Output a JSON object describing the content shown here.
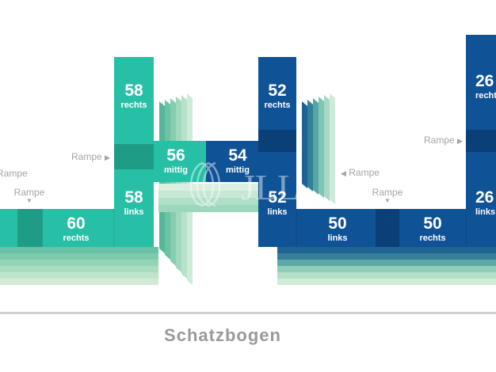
{
  "colors": {
    "green_top": "#27c0a6",
    "green_dark": "#1f9c86",
    "blue_top": "#0f5296",
    "blue_dark": "#0a3f78",
    "ramp_text": "#a4a4a4",
    "street": "#cfcfcf",
    "street_text": "#9a9a9a"
  },
  "sections": [
    {
      "id": "left-rechts",
      "number": "60",
      "label": "rechts"
    },
    {
      "id": "green-tower-rechts",
      "number": "58",
      "label": "rechts"
    },
    {
      "id": "green-tower-links",
      "number": "58",
      "label": "links"
    },
    {
      "id": "bridge-green-mittig",
      "number": "56",
      "label": "mittig"
    },
    {
      "id": "bridge-blue-mittig",
      "number": "54",
      "label": "mittig"
    },
    {
      "id": "blue-tower-rechts",
      "number": "52",
      "label": "rechts"
    },
    {
      "id": "blue-tower-links",
      "number": "52",
      "label": "links"
    },
    {
      "id": "blue-row-links",
      "number": "50",
      "label": "links"
    },
    {
      "id": "blue-row-rechts",
      "number": "50",
      "label": "rechts"
    },
    {
      "id": "right-tower-rechts",
      "number": "26",
      "label": "rechts"
    },
    {
      "id": "right-tower-links",
      "number": "26",
      "label": "links"
    }
  ],
  "ramps": [
    {
      "id": "ramp-far-left",
      "text": "Rampe"
    },
    {
      "id": "ramp-left-down",
      "text": "Rampe",
      "arrow": "▼"
    },
    {
      "id": "ramp-green-tower",
      "text": "Rampe",
      "arrow": "▶"
    },
    {
      "id": "ramp-blue-tower",
      "text": "Rampe",
      "arrow": "◀"
    },
    {
      "id": "ramp-blue-row",
      "text": "Rampe",
      "arrow": "▼"
    },
    {
      "id": "ramp-right-tower",
      "text": "Rampe",
      "arrow": "▶"
    }
  ],
  "street": {
    "name": "Schatzbogen"
  },
  "watermark": {
    "logo": "JLL"
  }
}
